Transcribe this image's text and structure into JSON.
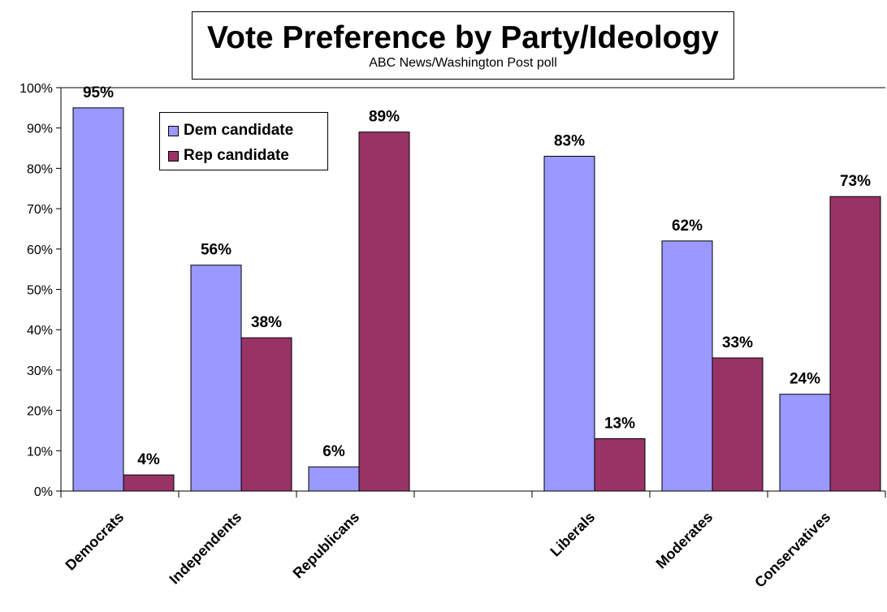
{
  "chart_data": {
    "type": "bar",
    "title": "Vote Preference by Party/Ideology",
    "subtitle": "ABC News/Washington Post poll",
    "categories": [
      "Democrats",
      "Independents",
      "Republicans",
      "",
      "Liberals",
      "Moderates",
      "Conservatives"
    ],
    "series": [
      {
        "name": "Dem candidate",
        "color": "#9999ff",
        "values": [
          95,
          56,
          6,
          null,
          83,
          62,
          24
        ]
      },
      {
        "name": "Rep candidate",
        "color": "#993366",
        "values": [
          4,
          38,
          89,
          null,
          13,
          33,
          73
        ]
      }
    ],
    "value_labels": {
      "dem": [
        "95%",
        "56%",
        "6%",
        "",
        "83%",
        "62%",
        "24%"
      ],
      "rep": [
        "4%",
        "38%",
        "89%",
        "",
        "13%",
        "33%",
        "73%"
      ]
    },
    "ylim": [
      0,
      100
    ],
    "yticks": [
      "0%",
      "10%",
      "20%",
      "30%",
      "40%",
      "50%",
      "60%",
      "70%",
      "80%",
      "90%",
      "100%"
    ],
    "xlabel": "",
    "ylabel": "",
    "grid": false,
    "legend_position": "top-left"
  }
}
